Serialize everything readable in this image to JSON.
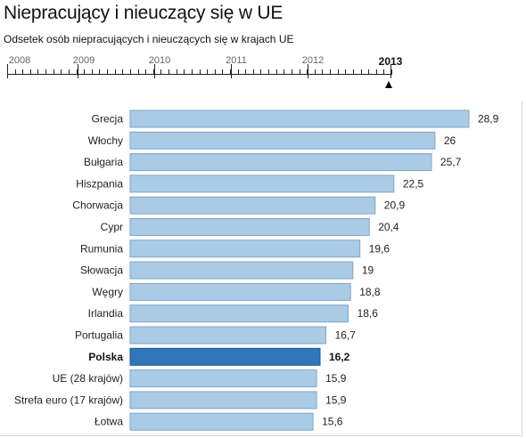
{
  "title": "Niepracujący i nieuczący się w UE",
  "subtitle": "Odsetek osób niepracujących i nieuczących się w krajach UE",
  "timeline": {
    "years": [
      "2008",
      "2009",
      "2010",
      "2011",
      "2012",
      "2013"
    ],
    "selected": "2013"
  },
  "colors": {
    "bar": "#a9cbe6",
    "bar_border": "#7ea6c6",
    "highlight": "#2f76ba",
    "highlight_border": "#1c5a94"
  },
  "chart_data": {
    "type": "bar",
    "orientation": "horizontal",
    "title": "Niepracujący i nieuczący się w UE",
    "subtitle": "Odsetek osób niepracujących i nieuczących się w krajach UE",
    "categories": [
      "Grecja",
      "Włochy",
      "Bułgaria",
      "Hiszpania",
      "Chorwacja",
      "Cypr",
      "Rumunia",
      "Słowacja",
      "Węgry",
      "Irlandia",
      "Portugalia",
      "Polska",
      "UE (28 krajów)",
      "Strefa euro (17 krajów)",
      "Łotwa"
    ],
    "values": [
      28.9,
      26,
      25.7,
      22.5,
      20.9,
      20.4,
      19.6,
      19,
      18.8,
      18.6,
      16.7,
      16.2,
      15.9,
      15.9,
      15.6
    ],
    "value_labels": [
      "28,9",
      "26",
      "25,7",
      "22,5",
      "20,9",
      "20,4",
      "19,6",
      "19",
      "18,8",
      "18,6",
      "16,7",
      "16,2",
      "15,9",
      "15,9",
      "15,6"
    ],
    "highlight": "Polska",
    "xlim": [
      0,
      28.9
    ],
    "grid": false,
    "legend": "none"
  }
}
